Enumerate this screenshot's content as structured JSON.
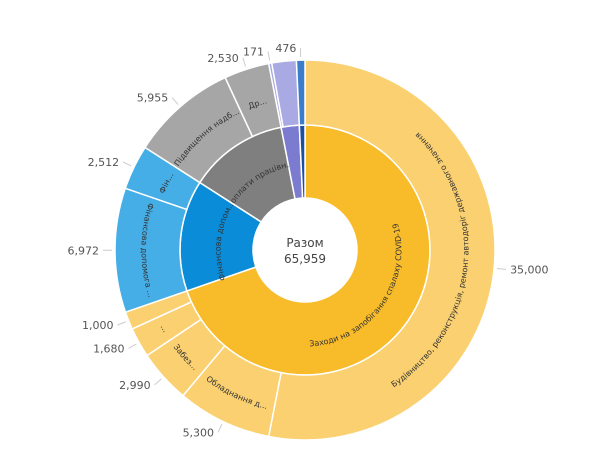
{
  "chart_data": {
    "type": "sunburst",
    "center_label": "Разом",
    "total": "65,959",
    "groups": [
      {
        "label": "Заходи на запобігання спалаху COVID-19",
        "value": 45970,
        "color": "#F8BC2B",
        "child_color": "#FAD070",
        "children": [
          {
            "label": "Будівництво, реконструкція, ремонт автодоріг державного значення",
            "value": 35000,
            "value_text": "35,000"
          },
          {
            "label": "Обладнання д...",
            "value": 5300,
            "value_text": "5,300"
          },
          {
            "label": "Забез...",
            "value": 2990,
            "value_text": "2,990"
          },
          {
            "label": "...",
            "value": 1680,
            "value_text": "1,680"
          },
          {
            "label": "",
            "value": 1000,
            "value_text": "1,000"
          }
        ]
      },
      {
        "label": "Фінансова допом...",
        "value": 9484,
        "color": "#0A8CD8",
        "child_color": "#45AEE6",
        "children": [
          {
            "label": "Фінансова допомога ...",
            "value": 6972,
            "value_text": "6,972"
          },
          {
            "label": "Фін...",
            "value": 2512,
            "value_text": "2,512"
          }
        ]
      },
      {
        "label": "Доплати працівн...",
        "value": 8485,
        "color": "#7F7F7F",
        "child_color": "#A6A6A6",
        "children": [
          {
            "label": "Підвищення надб...",
            "value": 5955,
            "value_text": "5,955"
          },
          {
            "label": "Др...",
            "value": 2530,
            "value_text": "2,530"
          }
        ]
      },
      {
        "label": "",
        "value": 1544,
        "color": "#7B7BD0",
        "child_color": "#A9A9E3",
        "children": [
          {
            "label": "",
            "value": 171,
            "value_text": "171"
          },
          {
            "label": "",
            "value": 1373,
            "value_text": ""
          }
        ]
      },
      {
        "label": "",
        "value": 476,
        "color": "#1B4FA0",
        "child_color": "#3B7CCB",
        "children": [
          {
            "label": "",
            "value": 476,
            "value_text": "476"
          }
        ]
      }
    ]
  }
}
